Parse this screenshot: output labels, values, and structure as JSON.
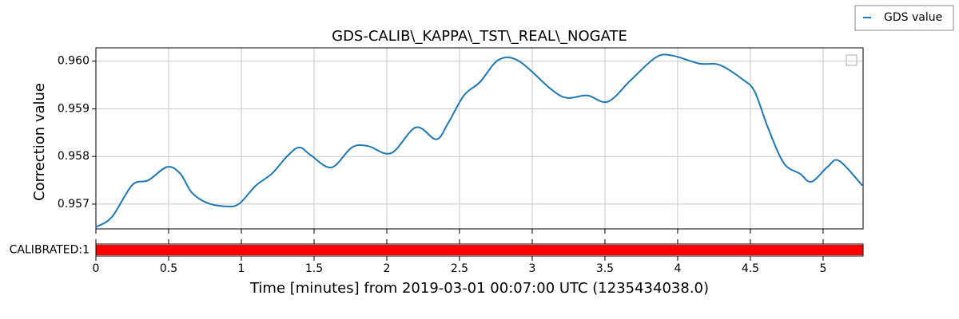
{
  "chart_data": {
    "type": "line",
    "title": "GDS-CALIB\\_KAPPA\\_TST\\_REAL\\_NOGATE",
    "xlabel": "Time [minutes] from 2019-03-01 00:07:00 UTC (1235434038.0)",
    "ylabel": "Correction value",
    "x": [
      0,
      0.11,
      0.25,
      0.36,
      0.49,
      0.58,
      0.66,
      0.77,
      0.91,
      0.99,
      1.1,
      1.21,
      1.32,
      1.4,
      1.48,
      1.62,
      1.76,
      1.87,
      2.03,
      2.2,
      2.34,
      2.42,
      2.53,
      2.64,
      2.77,
      2.91,
      3.13,
      3.24,
      3.38,
      3.52,
      3.68,
      3.85,
      3.96,
      4.15,
      4.29,
      4.45,
      4.53,
      4.62,
      4.73,
      4.84,
      4.92,
      5.03,
      5.11,
      5.27
    ],
    "series": [
      {
        "name": "GDS value",
        "color": "#1f77b4",
        "values": [
          0.95652,
          0.95673,
          0.9574,
          0.9575,
          0.95778,
          0.95764,
          0.95724,
          0.95702,
          0.95695,
          0.95702,
          0.95739,
          0.95764,
          0.95802,
          0.95819,
          0.95802,
          0.95777,
          0.95819,
          0.95822,
          0.95807,
          0.95861,
          0.95836,
          0.95869,
          0.95928,
          0.95956,
          0.96003,
          0.96,
          0.95941,
          0.95923,
          0.95928,
          0.95915,
          0.95961,
          0.96008,
          0.96012,
          0.95995,
          0.95992,
          0.95961,
          0.95936,
          0.95861,
          0.95786,
          0.95764,
          0.95747,
          0.95778,
          0.95791,
          0.95739
        ]
      }
    ],
    "xlim": [
      0,
      5.275
    ],
    "ylim": [
      0.95648,
      0.96028
    ],
    "xticks": [
      0,
      0.5,
      1,
      1.5,
      2,
      2.5,
      3,
      3.5,
      4,
      4.5,
      5
    ],
    "yticks": [
      0.957,
      0.958,
      0.959,
      {
        "value": 0.96,
        "label": "0.960"
      }
    ],
    "grid": true,
    "legend": "upper right",
    "segments": [
      {
        "name": "CALIBRATED:1",
        "color": "#ff0000",
        "start": 0,
        "end": 5.275
      }
    ]
  }
}
